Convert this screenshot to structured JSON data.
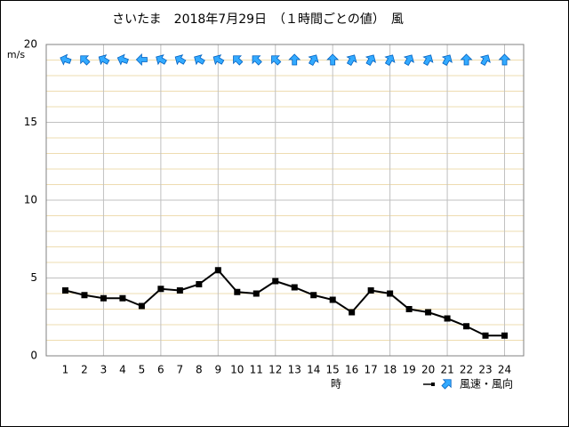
{
  "chart_data": {
    "type": "line",
    "title": "さいたま　2018年7月29日　（１時間ごとの値）　風",
    "y_label": "m/s",
    "x_label": "時",
    "categories": [
      1,
      2,
      3,
      4,
      5,
      6,
      7,
      8,
      9,
      10,
      11,
      12,
      13,
      14,
      15,
      16,
      17,
      18,
      19,
      20,
      21,
      22,
      23,
      24
    ],
    "series": [
      {
        "name": "風速・風向",
        "color": "#000000",
        "arrow_color": "#33aaff",
        "values": [
          4.2,
          3.9,
          3.7,
          3.7,
          3.2,
          4.3,
          4.2,
          4.6,
          5.5,
          4.1,
          4.0,
          4.8,
          4.4,
          3.9,
          3.6,
          2.8,
          4.2,
          4.0,
          3.0,
          2.8,
          2.4,
          1.9,
          1.3,
          1.3
        ],
        "directions": [
          -70,
          -45,
          -60,
          -70,
          -90,
          -60,
          -60,
          -60,
          -60,
          -45,
          -45,
          -45,
          0,
          30,
          0,
          30,
          30,
          30,
          30,
          30,
          30,
          0,
          30,
          0
        ]
      }
    ],
    "ylim": [
      0,
      20
    ],
    "yticks": [
      0,
      5,
      10,
      15,
      20
    ],
    "grid": true,
    "minor_grid": true,
    "x_grid_step": 3
  }
}
